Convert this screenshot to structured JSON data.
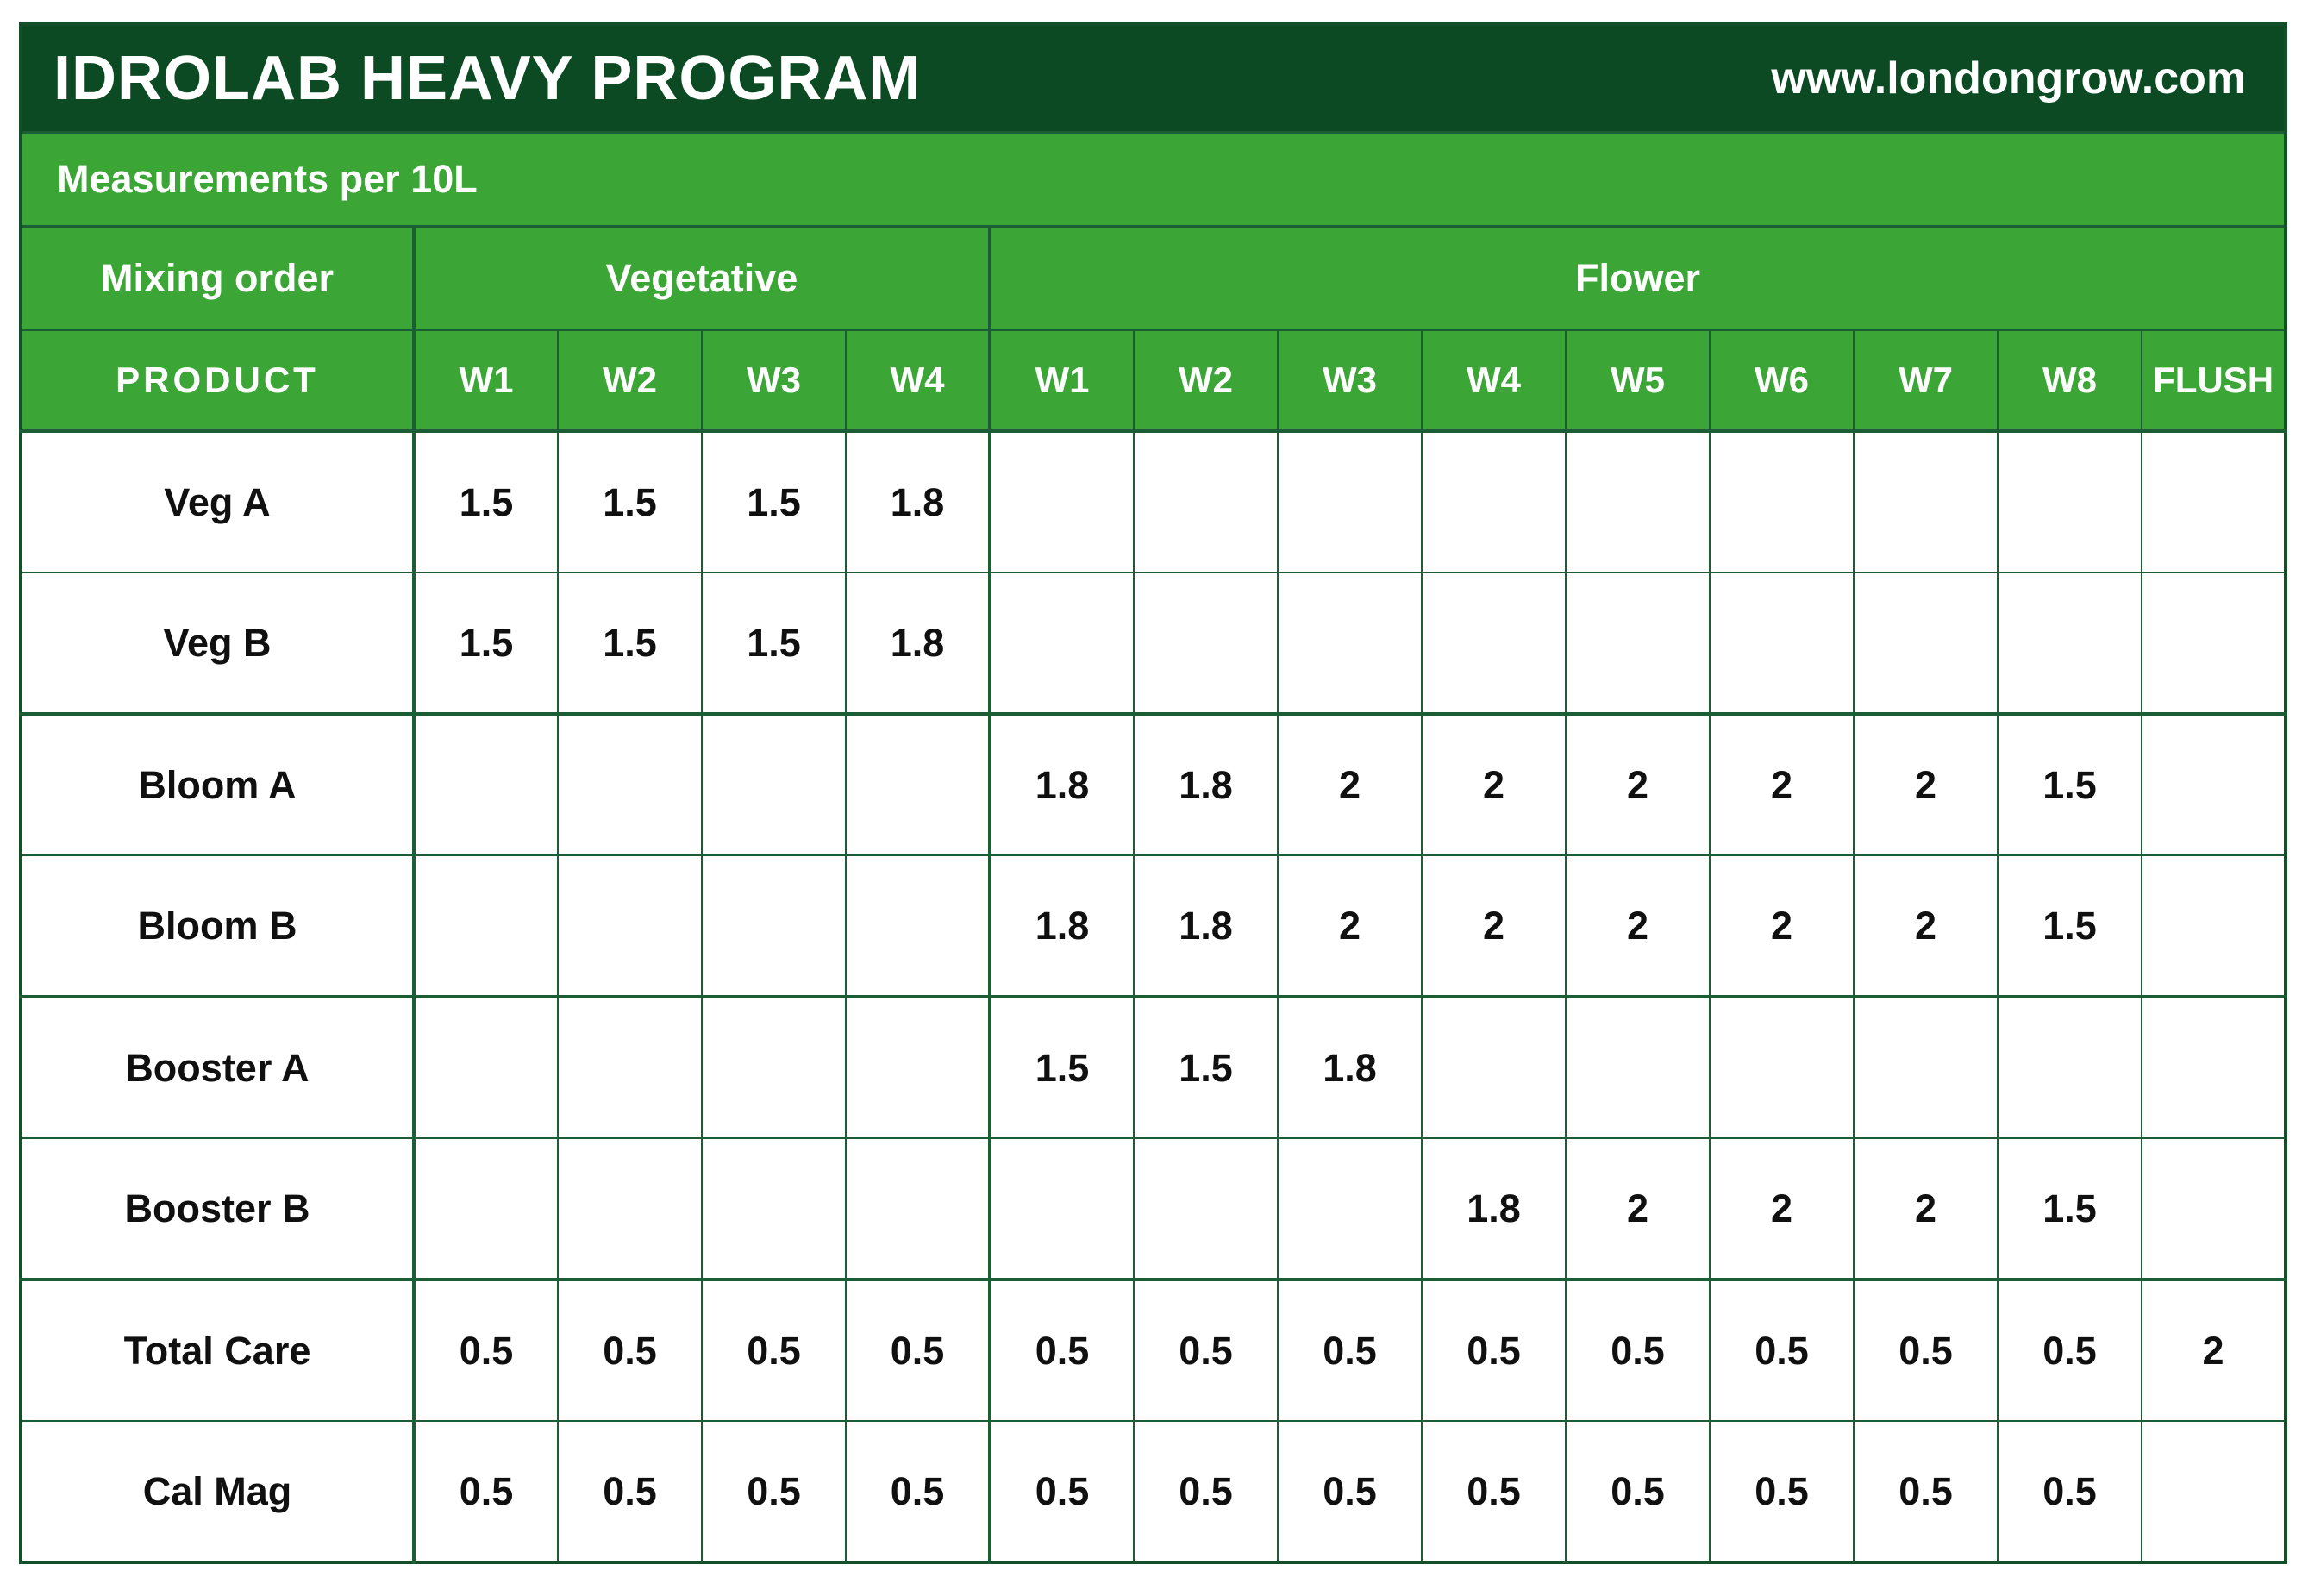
{
  "chart_data": {
    "type": "table",
    "title": "IDROLAB HEAVY PROGRAM",
    "website": "www.londongrow.com",
    "subtitle": "Measurements per 10L",
    "mixing_order_label": "Mixing order",
    "vegetative_label": "Vegetative",
    "flower_label": "Flower",
    "product_header": "PRODUCT",
    "flush_header": "FLUSH",
    "veg_weeks": [
      "W1",
      "W2",
      "W3",
      "W4"
    ],
    "flower_weeks": [
      "W1",
      "W2",
      "W3",
      "W4",
      "W5",
      "W6",
      "W7",
      "W8"
    ],
    "rows": [
      {
        "product": "Veg A",
        "veg": [
          "1.5",
          "1.5",
          "1.5",
          "1.8"
        ],
        "flower": [
          "",
          "",
          "",
          "",
          "",
          "",
          "",
          ""
        ],
        "flush": ""
      },
      {
        "product": "Veg B",
        "veg": [
          "1.5",
          "1.5",
          "1.5",
          "1.8"
        ],
        "flower": [
          "",
          "",
          "",
          "",
          "",
          "",
          "",
          ""
        ],
        "flush": ""
      },
      {
        "product": "Bloom A",
        "veg": [
          "",
          "",
          "",
          ""
        ],
        "flower": [
          "1.8",
          "1.8",
          "2",
          "2",
          "2",
          "2",
          "2",
          "1.5"
        ],
        "flush": ""
      },
      {
        "product": "Bloom B",
        "veg": [
          "",
          "",
          "",
          ""
        ],
        "flower": [
          "1.8",
          "1.8",
          "2",
          "2",
          "2",
          "2",
          "2",
          "1.5"
        ],
        "flush": ""
      },
      {
        "product": "Booster A",
        "veg": [
          "",
          "",
          "",
          ""
        ],
        "flower": [
          "1.5",
          "1.5",
          "1.8",
          "",
          "",
          "",
          "",
          ""
        ],
        "flush": ""
      },
      {
        "product": "Booster B",
        "veg": [
          "",
          "",
          "",
          ""
        ],
        "flower": [
          "",
          "",
          "",
          "1.8",
          "2",
          "2",
          "2",
          "1.5"
        ],
        "flush": ""
      },
      {
        "product": "Total Care",
        "veg": [
          "0.5",
          "0.5",
          "0.5",
          "0.5"
        ],
        "flower": [
          "0.5",
          "0.5",
          "0.5",
          "0.5",
          "0.5",
          "0.5",
          "0.5",
          "0.5"
        ],
        "flush": "2"
      },
      {
        "product": "Cal Mag",
        "veg": [
          "0.5",
          "0.5",
          "0.5",
          "0.5"
        ],
        "flower": [
          "0.5",
          "0.5",
          "0.5",
          "0.5",
          "0.5",
          "0.5",
          "0.5",
          "0.5"
        ],
        "flush": ""
      }
    ]
  },
  "colors": {
    "header_dark_green": "#0c4a23",
    "band_green": "#3ba636",
    "grid_line_green": "#1b5e35",
    "outer_border_green": "#134f28",
    "cell_background": "#ffffff",
    "cell_text": "#101010",
    "header_text": "#ffffff"
  }
}
